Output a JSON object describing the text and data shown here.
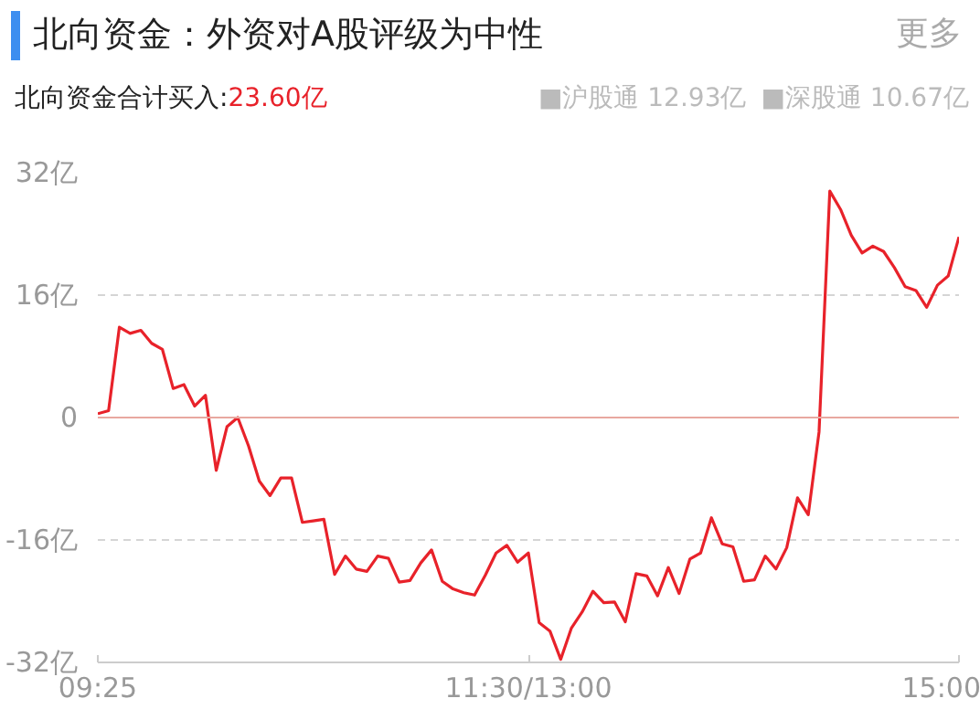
{
  "chart_data": {
    "type": "line",
    "title": "北向资金：外资对A股评级为中性",
    "subtitle": "北向资金合计买入:23.60亿",
    "annotations": [
      "更多",
      "■沪股通 12.93亿",
      "■深股通 10.67亿"
    ],
    "categories": [
      "09:25",
      null,
      null,
      null,
      null,
      null,
      null,
      null,
      null,
      null,
      null,
      null,
      null,
      null,
      null,
      null,
      null,
      null,
      null,
      null,
      null,
      null,
      null,
      null,
      null,
      null,
      null,
      null,
      null,
      null,
      null,
      null,
      null,
      null,
      null,
      null,
      null,
      null,
      null,
      null,
      "11:30/13:00",
      null,
      null,
      null,
      null,
      null,
      null,
      null,
      null,
      null,
      null,
      null,
      null,
      null,
      null,
      null,
      null,
      null,
      null,
      null,
      null,
      null,
      null,
      null,
      null,
      null,
      null,
      null,
      null,
      null,
      null,
      null,
      null,
      null,
      null,
      null,
      null,
      null,
      null,
      null,
      "15:00"
    ],
    "series": [
      {
        "color": "#e8222a",
        "values": [
          0.5,
          0.9,
          11.8,
          11.0,
          11.4,
          9.7,
          8.9,
          3.8,
          4.3,
          1.5,
          2.9,
          -6.9,
          -1.2,
          0,
          -3.7,
          -8.3,
          -10.2,
          -7.9,
          -7.9,
          -13.7,
          -13.5,
          -13.3,
          -20.5,
          -18.1,
          -19.8,
          -20.1,
          -18.1,
          -18.4,
          -21.5,
          -21.3,
          -19.0,
          -17.3,
          -21.4,
          -22.4,
          -22.9,
          -23.2,
          -20.6,
          -17.7,
          -16.7,
          -18.9,
          -17.7,
          -26.8,
          -27.9,
          -31.6,
          -27.5,
          -25.4,
          -22.7,
          -24.2,
          -24.1,
          -26.7,
          -20.4,
          -20.7,
          -23.3,
          -19.6,
          -23.0,
          -18.5,
          -17.7,
          -13.1,
          -16.5,
          -16.9,
          -21.4,
          -21.2,
          -18.1,
          -19.8,
          -17.0,
          -10.5,
          -12.7,
          -1.9,
          29.6,
          27.2,
          23.8,
          21.5,
          22.4,
          21.7,
          19.6,
          17.1,
          16.6,
          14.4,
          17.3,
          18.5,
          23.6
        ]
      }
    ],
    "ylim": [
      -32,
      32
    ],
    "yticks": [
      {
        "value": -32,
        "label": "-32亿"
      },
      {
        "value": -16,
        "label": "-16亿"
      },
      0,
      {
        "value": 16,
        "label": "16亿"
      },
      {
        "value": 32,
        "label": "32亿"
      }
    ],
    "ref_lines": [
      {
        "axis": "y",
        "value": 0,
        "color": "#e8a8a0"
      }
    ],
    "grid": "y",
    "line_style": "solid"
  }
}
